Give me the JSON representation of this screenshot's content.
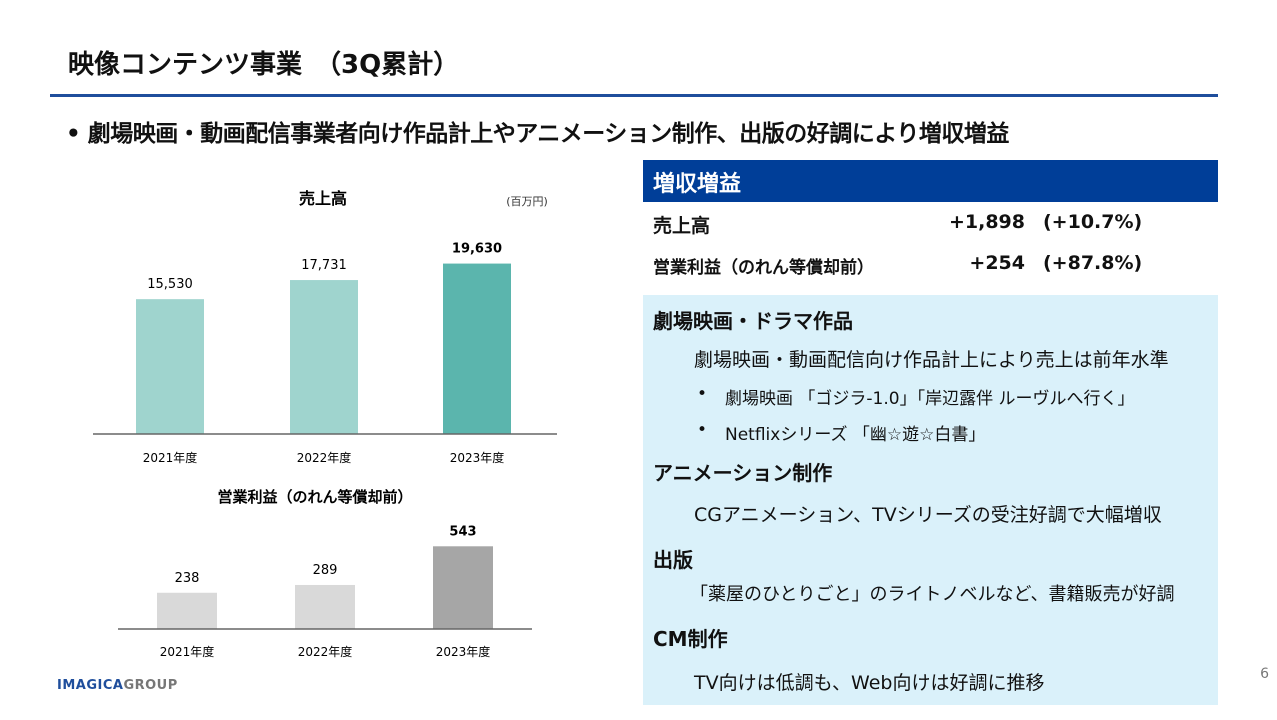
{
  "title": "映像コンテンツ事業　（3Q累計）",
  "headline": "• 劇場映画・動画配信事業者向け作品計上やアニメーション制作、出版の好調により増収増益",
  "panel": {
    "header": "増収増益",
    "kpis": [
      {
        "label": "売上高",
        "value": "+1,898",
        "pct": "(+10.7%)"
      },
      {
        "label": "営業利益（のれん等償却前）",
        "value": "+254",
        "pct": "(+87.8%)"
      }
    ]
  },
  "sections": [
    {
      "heading": "劇場映画・ドラマ作品",
      "text": "劇場映画・動画配信向け作品計上により売上は前年水準",
      "bullets": [
        "劇場映画 「ゴジラ-1.0」「岸辺露伴 ルーヴルへ行く」",
        "Netflixシリーズ 「幽☆遊☆白書」"
      ]
    },
    {
      "heading": "アニメーション制作",
      "text": "CGアニメーション、TVシリーズの受注好調で大幅増収"
    },
    {
      "heading": "出版",
      "text": "「薬屋のひとりごと」のライトノベルなど、書籍販売が好調"
    },
    {
      "heading": "CM制作",
      "text": "TV向けは低調も、Web向けは好調に推移"
    }
  ],
  "logo": {
    "part1": "IMAGICA",
    "part2": "GROUP"
  },
  "page_number": "6",
  "chart_data": [
    {
      "type": "bar",
      "title": "売上高",
      "unit": "(百万円)",
      "categories": [
        "2021年度",
        "2022年度",
        "2023年度"
      ],
      "values": [
        15530,
        17731,
        19630
      ],
      "value_labels": [
        "15,530",
        "17,731",
        "19,630"
      ],
      "ylim": [
        0,
        22000
      ],
      "colors": [
        "#9fd4ce",
        "#9fd4ce",
        "#5bb5ad"
      ]
    },
    {
      "type": "bar",
      "title": "営業利益（のれん等償却前）",
      "categories": [
        "2021年度",
        "2022年度",
        "2023年度"
      ],
      "values": [
        238,
        289,
        543
      ],
      "value_labels": [
        "238",
        "289",
        "543"
      ],
      "ylim": [
        0,
        650
      ],
      "colors": [
        "#d9d9d9",
        "#d9d9d9",
        "#a6a6a6"
      ]
    }
  ]
}
